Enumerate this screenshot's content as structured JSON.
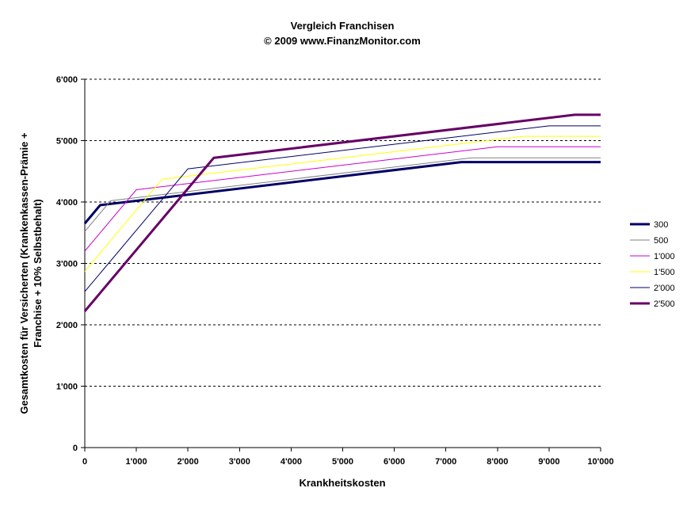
{
  "chart_data": {
    "type": "line",
    "title": [
      "Vergleich Franchisen",
      "© 2009 www.FinanzMonitor.com"
    ],
    "xlabel": "Krankheitskosten",
    "ylabel": [
      "Gesamtkosten für Versicherten (Krankenkassen-Prämie +",
      "Franchise + 10% Selbstbehalt)"
    ],
    "xlim": [
      0,
      10000
    ],
    "ylim": [
      0,
      6000
    ],
    "x_ticks": [
      0,
      1000,
      2000,
      3000,
      4000,
      5000,
      6000,
      7000,
      8000,
      9000,
      10000
    ],
    "x_tick_labels": [
      "0",
      "1'000",
      "2'000",
      "3'000",
      "4'000",
      "5'000",
      "6'000",
      "7'000",
      "8'000",
      "9'000",
      "10'000"
    ],
    "y_ticks": [
      0,
      1000,
      2000,
      3000,
      4000,
      5000,
      6000
    ],
    "y_tick_labels": [
      "0",
      "1'000",
      "2'000",
      "3'000",
      "4'000",
      "5'000",
      "6'000"
    ],
    "grid": "horizontal dashed",
    "legend_position": "right",
    "series": [
      {
        "name": "300",
        "color": "#000066",
        "width": "thick",
        "x": [
          0,
          300,
          7300,
          10000
        ],
        "y": [
          3650,
          3950,
          4650,
          4650
        ]
      },
      {
        "name": "500",
        "color": "#808080",
        "width": "thin",
        "x": [
          0,
          500,
          7500,
          10000
        ],
        "y": [
          3520,
          4020,
          4720,
          4720
        ]
      },
      {
        "name": "1'000",
        "color": "#cc00cc",
        "width": "thin",
        "x": [
          0,
          1000,
          8000,
          10000
        ],
        "y": [
          3200,
          4200,
          4900,
          4900
        ]
      },
      {
        "name": "1'500",
        "color": "#ffff00",
        "width": "thin",
        "x": [
          0,
          1500,
          8500,
          10000
        ],
        "y": [
          2870,
          4370,
          5070,
          5070
        ]
      },
      {
        "name": "2'000",
        "color": "#000066",
        "width": "thin",
        "x": [
          0,
          2000,
          9000,
          10000
        ],
        "y": [
          2540,
          4540,
          5240,
          5240
        ]
      },
      {
        "name": "2'500",
        "color": "#660066",
        "width": "thick",
        "x": [
          0,
          2500,
          9500,
          10000
        ],
        "y": [
          2220,
          4720,
          5420,
          5420
        ]
      }
    ]
  }
}
